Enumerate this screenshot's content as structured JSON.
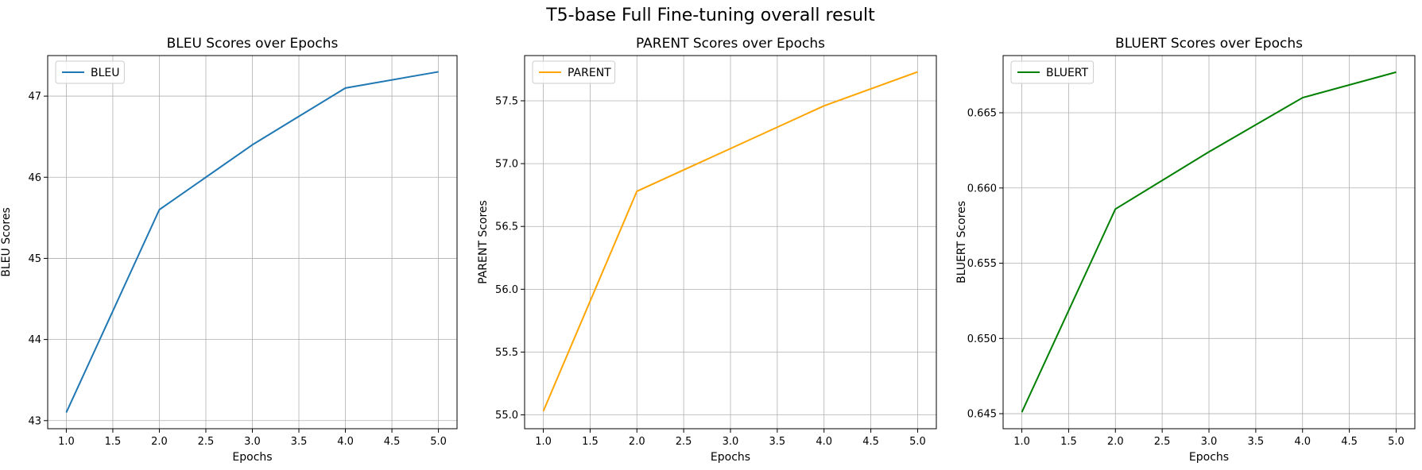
{
  "figure": {
    "title": "T5-base Full Fine-tuning overall result"
  },
  "chart_data": [
    {
      "type": "line",
      "title": "BLEU Scores over Epochs",
      "xlabel": "Epochs",
      "ylabel": "BLEU Scores",
      "x": [
        1,
        2,
        3,
        4,
        5
      ],
      "xlim": [
        0.8,
        5.2
      ],
      "ylim": [
        42.9,
        47.5
      ],
      "xticks": [
        1.0,
        1.5,
        2.0,
        2.5,
        3.0,
        3.5,
        4.0,
        4.5,
        5.0
      ],
      "xtick_labels": [
        "1.0",
        "1.5",
        "2.0",
        "2.5",
        "3.0",
        "3.5",
        "4.0",
        "4.5",
        "5.0"
      ],
      "yticks": [
        43,
        44,
        45,
        46,
        47
      ],
      "ytick_labels": [
        "43",
        "44",
        "45",
        "46",
        "47"
      ],
      "grid": true,
      "legend": "upper-left",
      "series": [
        {
          "name": "BLEU",
          "color": "#1f77b4",
          "values": [
            43.1,
            45.6,
            46.4,
            47.1,
            47.3
          ]
        }
      ]
    },
    {
      "type": "line",
      "title": "PARENT Scores over Epochs",
      "xlabel": "Epochs",
      "ylabel": "PARENT Scores",
      "x": [
        1,
        2,
        3,
        4,
        5
      ],
      "xlim": [
        0.8,
        5.2
      ],
      "ylim": [
        54.89,
        57.86
      ],
      "xticks": [
        1.0,
        1.5,
        2.0,
        2.5,
        3.0,
        3.5,
        4.0,
        4.5,
        5.0
      ],
      "xtick_labels": [
        "1.0",
        "1.5",
        "2.0",
        "2.5",
        "3.0",
        "3.5",
        "4.0",
        "4.5",
        "5.0"
      ],
      "yticks": [
        55.0,
        55.5,
        56.0,
        56.5,
        57.0,
        57.5
      ],
      "ytick_labels": [
        "55.0",
        "55.5",
        "56.0",
        "56.5",
        "57.0",
        "57.5"
      ],
      "grid": true,
      "legend": "upper-left",
      "series": [
        {
          "name": "PARENT",
          "color": "#ffa500",
          "values": [
            55.03,
            56.78,
            57.12,
            57.46,
            57.73
          ]
        }
      ]
    },
    {
      "type": "line",
      "title": "BLUERT Scores over Epochs",
      "xlabel": "Epochs",
      "ylabel": "BLUERT Scores",
      "x": [
        1,
        2,
        3,
        4,
        5
      ],
      "xlim": [
        0.8,
        5.2
      ],
      "ylim": [
        0.644,
        0.6688
      ],
      "xticks": [
        1.0,
        1.5,
        2.0,
        2.5,
        3.0,
        3.5,
        4.0,
        4.5,
        5.0
      ],
      "xtick_labels": [
        "1.0",
        "1.5",
        "2.0",
        "2.5",
        "3.0",
        "3.5",
        "4.0",
        "4.5",
        "5.0"
      ],
      "yticks": [
        0.645,
        0.65,
        0.655,
        0.66,
        0.665
      ],
      "ytick_labels": [
        "0.645",
        "0.650",
        "0.655",
        "0.660",
        "0.665"
      ],
      "grid": true,
      "legend": "upper-left",
      "series": [
        {
          "name": "BLUERT",
          "color": "#008000",
          "values": [
            0.6451,
            0.6586,
            0.6624,
            0.666,
            0.6677
          ]
        }
      ]
    }
  ]
}
